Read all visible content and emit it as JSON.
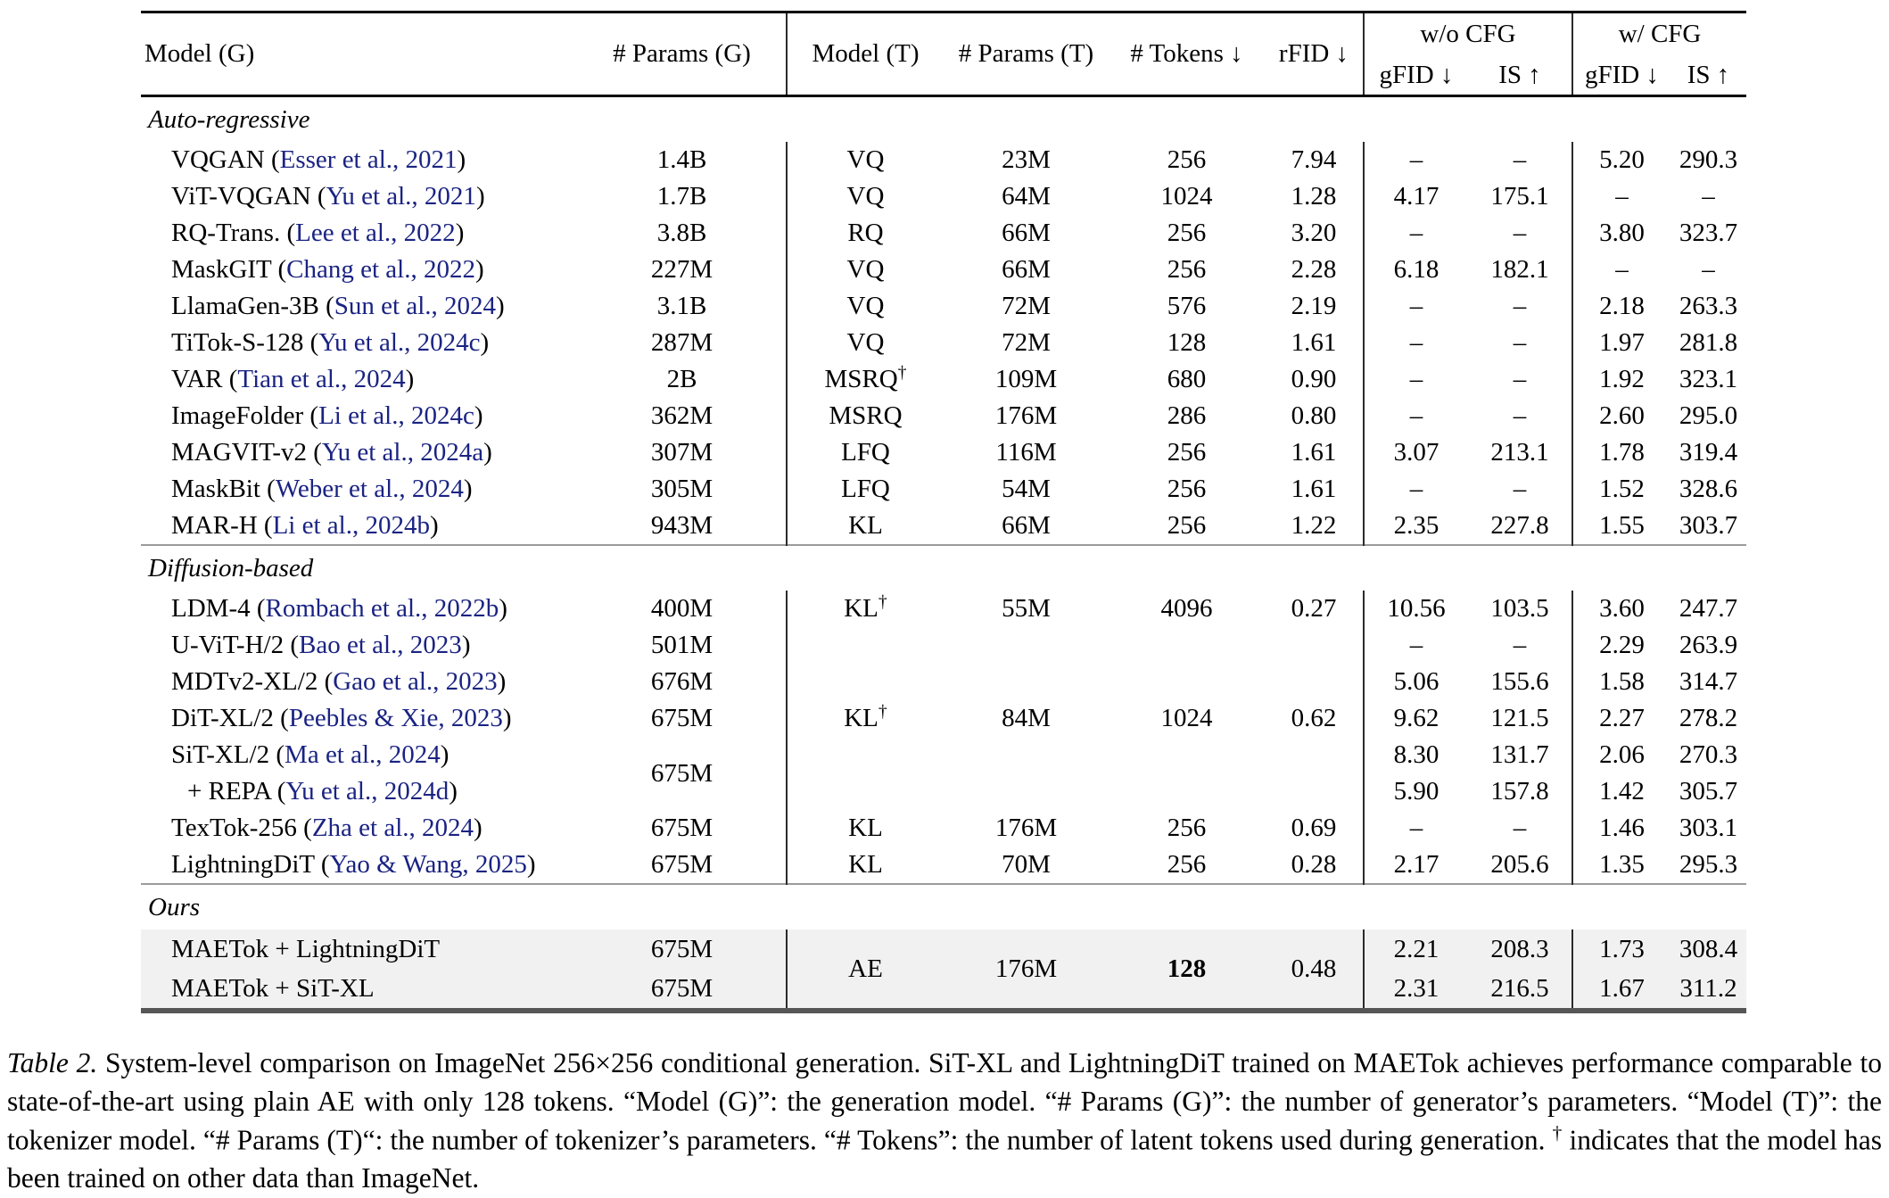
{
  "colors": {
    "citation_blue": "#1a2382",
    "highlight_row": "#f1f1f1",
    "rule_black": "#000000",
    "rule_gray": "#9b9b9b"
  },
  "table": {
    "headers": {
      "model_g": "Model (G)",
      "params_g": "# Params (G)",
      "model_t": "Model (T)",
      "params_t": "# Params (T)",
      "tokens": "# Tokens ↓",
      "rfid": "rFID ↓",
      "wo_cfg": "w/o CFG",
      "w_cfg": "w/ CFG",
      "gfid": "gFID ↓",
      "is": "IS ↑"
    },
    "sections": [
      {
        "label": "Auto-regressive",
        "highlight": false,
        "rows": [
          {
            "cells": [
              {
                "t": "VQGAN (",
                "cite": "Esser et al., 2021",
                "post": ")"
              },
              {
                "t": "1.4B"
              },
              {
                "t": "VQ"
              },
              {
                "t": "23M"
              },
              {
                "t": "256"
              },
              {
                "t": "7.94"
              },
              {
                "t": "–"
              },
              {
                "t": "–"
              },
              {
                "t": "5.20"
              },
              {
                "t": "290.3"
              }
            ]
          },
          {
            "cells": [
              {
                "t": "ViT-VQGAN (",
                "cite": "Yu et al., 2021",
                "post": ")"
              },
              {
                "t": "1.7B"
              },
              {
                "t": "VQ"
              },
              {
                "t": "64M"
              },
              {
                "t": "1024"
              },
              {
                "t": "1.28"
              },
              {
                "t": "4.17"
              },
              {
                "t": "175.1"
              },
              {
                "t": "–"
              },
              {
                "t": "–"
              }
            ]
          },
          {
            "cells": [
              {
                "t": "RQ-Trans. (",
                "cite": "Lee et al., 2022",
                "post": ")"
              },
              {
                "t": "3.8B"
              },
              {
                "t": "RQ"
              },
              {
                "t": "66M"
              },
              {
                "t": "256"
              },
              {
                "t": "3.20"
              },
              {
                "t": "–"
              },
              {
                "t": "–"
              },
              {
                "t": "3.80"
              },
              {
                "t": "323.7"
              }
            ]
          },
          {
            "cells": [
              {
                "t": "MaskGIT (",
                "cite": "Chang et al., 2022",
                "post": ")"
              },
              {
                "t": "227M"
              },
              {
                "t": "VQ"
              },
              {
                "t": "66M"
              },
              {
                "t": "256"
              },
              {
                "t": "2.28"
              },
              {
                "t": "6.18"
              },
              {
                "t": "182.1"
              },
              {
                "t": "–"
              },
              {
                "t": "–"
              }
            ]
          },
          {
            "cells": [
              {
                "t": "LlamaGen-3B (",
                "cite": "Sun et al., 2024",
                "post": ")"
              },
              {
                "t": "3.1B"
              },
              {
                "t": "VQ"
              },
              {
                "t": "72M"
              },
              {
                "t": "576"
              },
              {
                "t": "2.19"
              },
              {
                "t": "–"
              },
              {
                "t": "–"
              },
              {
                "t": "2.18"
              },
              {
                "t": "263.3"
              }
            ]
          },
          {
            "cells": [
              {
                "t": "TiTok-S-128 (",
                "cite": "Yu et al., 2024c",
                "post": ")"
              },
              {
                "t": "287M"
              },
              {
                "t": "VQ"
              },
              {
                "t": "72M"
              },
              {
                "t": "128"
              },
              {
                "t": "1.61"
              },
              {
                "t": "–"
              },
              {
                "t": "–"
              },
              {
                "t": "1.97"
              },
              {
                "t": "281.8"
              }
            ]
          },
          {
            "cells": [
              {
                "t": "VAR (",
                "cite": "Tian et al., 2024",
                "post": ")"
              },
              {
                "t": "2B"
              },
              {
                "t": "MSRQ",
                "dag": true
              },
              {
                "t": "109M"
              },
              {
                "t": "680"
              },
              {
                "t": "0.90"
              },
              {
                "t": "–"
              },
              {
                "t": "–"
              },
              {
                "t": "1.92"
              },
              {
                "t": "323.1"
              }
            ]
          },
          {
            "cells": [
              {
                "t": "ImageFolder (",
                "cite": "Li et al., 2024c",
                "post": ")"
              },
              {
                "t": "362M"
              },
              {
                "t": "MSRQ"
              },
              {
                "t": "176M"
              },
              {
                "t": "286"
              },
              {
                "t": "0.80"
              },
              {
                "t": "–"
              },
              {
                "t": "–"
              },
              {
                "t": "2.60"
              },
              {
                "t": "295.0"
              }
            ]
          },
          {
            "cells": [
              {
                "t": "MAGVIT-v2 (",
                "cite": "Yu et al., 2024a",
                "post": ")"
              },
              {
                "t": "307M"
              },
              {
                "t": "LFQ"
              },
              {
                "t": "116M"
              },
              {
                "t": "256"
              },
              {
                "t": "1.61"
              },
              {
                "t": "3.07"
              },
              {
                "t": "213.1"
              },
              {
                "t": "1.78"
              },
              {
                "t": "319.4"
              }
            ]
          },
          {
            "cells": [
              {
                "t": "MaskBit (",
                "cite": "Weber et al., 2024",
                "post": ")"
              },
              {
                "t": "305M"
              },
              {
                "t": "LFQ"
              },
              {
                "t": "54M"
              },
              {
                "t": "256"
              },
              {
                "t": "1.61"
              },
              {
                "t": "–"
              },
              {
                "t": "–"
              },
              {
                "t": "1.52"
              },
              {
                "t": "328.6"
              }
            ]
          },
          {
            "cells": [
              {
                "t": "MAR-H (",
                "cite": "Li et al., 2024b",
                "post": ")"
              },
              {
                "t": "943M"
              },
              {
                "t": "KL"
              },
              {
                "t": "66M"
              },
              {
                "t": "256"
              },
              {
                "t": "1.22"
              },
              {
                "t": "2.35"
              },
              {
                "t": "227.8"
              },
              {
                "t": "1.55"
              },
              {
                "t": "303.7"
              }
            ]
          }
        ]
      },
      {
        "label": "Diffusion-based",
        "highlight": false,
        "rows": [
          {
            "cells": [
              {
                "t": "LDM-4 (",
                "cite": "Rombach et al., 2022b",
                "post": ")"
              },
              {
                "t": "400M"
              },
              {
                "t": "KL",
                "dag": true
              },
              {
                "t": "55M"
              },
              {
                "t": "4096"
              },
              {
                "t": "0.27"
              },
              {
                "t": "10.56"
              },
              {
                "t": "103.5"
              },
              {
                "t": "3.60"
              },
              {
                "t": "247.7"
              }
            ]
          },
          {
            "cells": [
              {
                "t": "U-ViT-H/2 (",
                "cite": "Bao et al., 2023",
                "post": ")"
              },
              {
                "t": "501M"
              },
              {
                "t": ""
              },
              {
                "t": ""
              },
              {
                "t": ""
              },
              {
                "t": ""
              },
              {
                "t": "–"
              },
              {
                "t": "–"
              },
              {
                "t": "2.29"
              },
              {
                "t": "263.9"
              }
            ]
          },
          {
            "cells": [
              {
                "t": "MDTv2-XL/2 (",
                "cite": "Gao et al., 2023",
                "post": ")"
              },
              {
                "t": "676M"
              },
              {
                "t": ""
              },
              {
                "t": ""
              },
              {
                "t": ""
              },
              {
                "t": ""
              },
              {
                "t": "5.06"
              },
              {
                "t": "155.6"
              },
              {
                "t": "1.58"
              },
              {
                "t": "314.7"
              }
            ]
          },
          {
            "cells": [
              {
                "t": "DiT-XL/2 (",
                "cite": "Peebles & Xie, 2023",
                "post": ")"
              },
              {
                "t": "675M"
              },
              {
                "t": "KL",
                "dag": true
              },
              {
                "t": "84M"
              },
              {
                "t": "1024"
              },
              {
                "t": "0.62"
              },
              {
                "t": "9.62"
              },
              {
                "t": "121.5"
              },
              {
                "t": "2.27"
              },
              {
                "t": "278.2"
              }
            ]
          },
          {
            "cells": [
              {
                "t": "SiT-XL/2 (",
                "cite": "Ma et al., 2024",
                "post": ")"
              },
              {
                "t": "675M",
                "rs": 2
              },
              {
                "t": ""
              },
              {
                "t": ""
              },
              {
                "t": ""
              },
              {
                "t": ""
              },
              {
                "t": "8.30"
              },
              {
                "t": "131.7"
              },
              {
                "t": "2.06"
              },
              {
                "t": "270.3"
              }
            ]
          },
          {
            "cells": [
              {
                "t": "+ REPA (",
                "cite": "Yu et al., 2024d",
                "post": ")",
                "ind": true
              },
              null,
              {
                "t": ""
              },
              {
                "t": ""
              },
              {
                "t": ""
              },
              {
                "t": ""
              },
              {
                "t": "5.90"
              },
              {
                "t": "157.8"
              },
              {
                "t": "1.42"
              },
              {
                "t": "305.7"
              }
            ]
          },
          {
            "cells": [
              {
                "t": "TexTok-256 (",
                "cite": "Zha et al., 2024",
                "post": ")"
              },
              {
                "t": "675M"
              },
              {
                "t": "KL"
              },
              {
                "t": "176M"
              },
              {
                "t": "256"
              },
              {
                "t": "0.69"
              },
              {
                "t": "–"
              },
              {
                "t": "–"
              },
              {
                "t": "1.46"
              },
              {
                "t": "303.1"
              }
            ]
          },
          {
            "cells": [
              {
                "t": "LightningDiT (",
                "cite": "Yao & Wang, 2025",
                "post": ")"
              },
              {
                "t": "675M"
              },
              {
                "t": "KL"
              },
              {
                "t": "70M"
              },
              {
                "t": "256"
              },
              {
                "t": "0.28"
              },
              {
                "t": "2.17"
              },
              {
                "t": "205.6"
              },
              {
                "t": "1.35"
              },
              {
                "t": "295.3"
              }
            ]
          }
        ]
      },
      {
        "label": "Ours",
        "highlight": true,
        "rows": [
          {
            "cells": [
              {
                "t": "MAETok + LightningDiT"
              },
              {
                "t": "675M"
              },
              {
                "t": "AE",
                "rs": 2
              },
              {
                "t": "176M",
                "rs": 2
              },
              {
                "t": "128",
                "rs": 2,
                "b": true
              },
              {
                "t": "0.48",
                "rs": 2
              },
              {
                "t": "2.21"
              },
              {
                "t": "208.3"
              },
              {
                "t": "1.73"
              },
              {
                "t": "308.4"
              }
            ]
          },
          {
            "cells": [
              {
                "t": "MAETok + SiT-XL"
              },
              {
                "t": "675M"
              },
              null,
              null,
              null,
              null,
              {
                "t": "2.31"
              },
              {
                "t": "216.5"
              },
              {
                "t": "1.67"
              },
              {
                "t": "311.2"
              }
            ]
          }
        ]
      }
    ]
  },
  "caption": {
    "label": "Table 2.",
    "body": "System-level comparison on ImageNet 256×256 conditional generation. SiT-XL and LightningDiT trained on MAETok achieves performance comparable to state-of-the-art using plain AE with only 128 tokens. “Model (G)”: the generation model. “# Params (G)”: the number of generator’s parameters. “Model (T)”: the tokenizer model. “# Params (T)“: the number of tokenizer’s parameters. “# Tokens”: the number of latent tokens used during generation.",
    "dagger": "†",
    "body_after": "indicates that the model has been trained on other data than ImageNet."
  }
}
